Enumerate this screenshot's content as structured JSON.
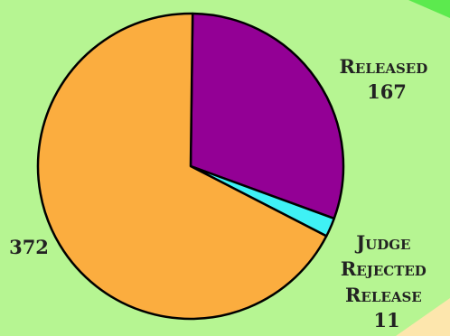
{
  "chart_data": {
    "type": "pie",
    "slices": [
      {
        "label": "Released",
        "value": 167,
        "color": "#930095"
      },
      {
        "label": "Judge Rejected Release",
        "value": 11,
        "color": "#3ff1f5"
      },
      {
        "label": "",
        "value": 372,
        "color": "#fbad3f"
      }
    ],
    "title": "",
    "legend": "none",
    "colors": {
      "background": "#b6f592",
      "corner_top": "#5cea4e",
      "corner_bottom": "#fde6ad",
      "outline": "#000000"
    }
  }
}
